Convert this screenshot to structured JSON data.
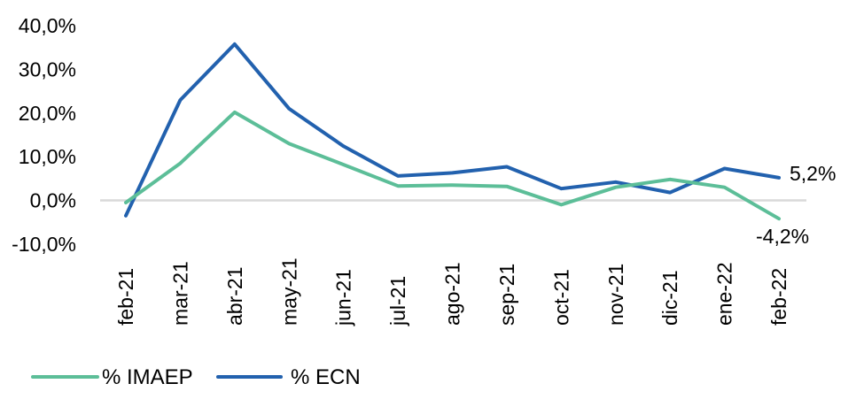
{
  "chart_data": {
    "type": "line",
    "title": "",
    "xlabel": "",
    "ylabel": "",
    "categories": [
      "feb-21",
      "mar-21",
      "abr-21",
      "may-21",
      "jun-21",
      "jul-21",
      "ago-21",
      "sep-21",
      "oct-21",
      "nov-21",
      "dic-21",
      "ene-22",
      "feb-22"
    ],
    "series": [
      {
        "name": "% IMAEP",
        "color": "#5CBE98",
        "values": [
          -0.5,
          8.5,
          20.2,
          13.0,
          8.2,
          3.3,
          3.5,
          3.2,
          -1.0,
          3.0,
          4.8,
          3.0,
          -4.2
        ],
        "end_label": "-4,2%"
      },
      {
        "name": "% ECN",
        "color": "#2261AE",
        "values": [
          -3.5,
          23.0,
          35.8,
          21.0,
          12.4,
          5.6,
          6.3,
          7.7,
          2.7,
          4.2,
          1.8,
          7.3,
          5.2
        ],
        "end_label": "5,2%"
      }
    ],
    "ylim": [
      -10,
      40
    ],
    "yticks": [
      {
        "value": 40,
        "label": "40,0%"
      },
      {
        "value": 30,
        "label": "30,0%"
      },
      {
        "value": 20,
        "label": "20,0%"
      },
      {
        "value": 10,
        "label": "10,0%"
      },
      {
        "value": 0,
        "label": "0,0%"
      },
      {
        "value": -10,
        "label": "-10,0%"
      }
    ],
    "grid": "zero-line-only",
    "zero_line_color": "#D9D9D9",
    "legend_position": "bottom-left",
    "x_label_rotation_deg": -90
  }
}
